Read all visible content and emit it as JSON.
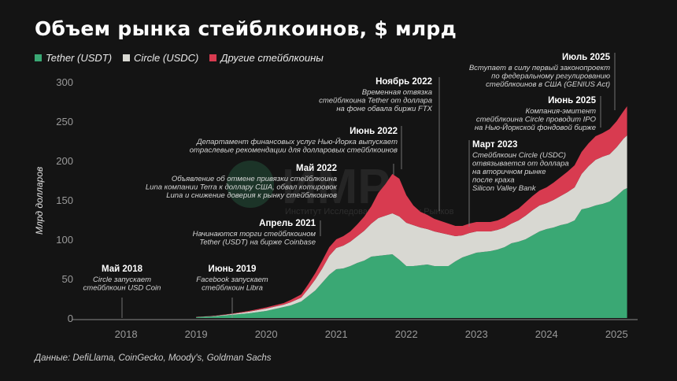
{
  "chart_data": {
    "type": "area",
    "stacked": true,
    "title": "Объем рынка стейблкоинов, $ млрд",
    "ylabel": "Млрд долларов",
    "xlabel": "",
    "ylim": [
      0,
      300
    ],
    "yticks": [
      0,
      50,
      100,
      150,
      200,
      250,
      300
    ],
    "xticks": [
      "2018",
      "2019",
      "2020",
      "2021",
      "2022",
      "2023",
      "2024",
      "2025"
    ],
    "grid": false,
    "legend_position": "top-left",
    "x": [
      2019.5,
      2019.75,
      2020.0,
      2020.25,
      2020.5,
      2020.75,
      2020.85,
      2021.0,
      2021.1,
      2021.2,
      2021.3,
      2021.4,
      2021.5,
      2021.6,
      2021.7,
      2021.8,
      2021.9,
      2022.0,
      2022.1,
      2022.2,
      2022.3,
      2022.4,
      2022.5,
      2022.6,
      2022.7,
      2022.8,
      2022.9,
      2023.0,
      2023.1,
      2023.2,
      2023.3,
      2023.4,
      2023.5,
      2023.6,
      2023.7,
      2023.8,
      2023.9,
      2024.0,
      2024.1,
      2024.2,
      2024.3,
      2024.4,
      2024.5,
      2024.6,
      2024.7,
      2024.8,
      2024.9,
      2025.0,
      2025.1,
      2025.2,
      2025.3,
      2025.4,
      2025.5,
      2025.6,
      2025.65
    ],
    "series": [
      {
        "name": "Tether (USDT)",
        "color": "#3aa874",
        "values": [
          1,
          2,
          4,
          6,
          9,
          14,
          16,
          21,
          28,
          35,
          45,
          55,
          62,
          63,
          66,
          70,
          73,
          78,
          79,
          80,
          81,
          74,
          66,
          66,
          67,
          68,
          66,
          66,
          66,
          72,
          77,
          80,
          83,
          84,
          85,
          87,
          90,
          95,
          97,
          100,
          105,
          110,
          113,
          115,
          118,
          120,
          124,
          138,
          140,
          143,
          145,
          148,
          155,
          163,
          165
        ]
      },
      {
        "name": "Circle (USDC)",
        "color": "#d8d8d2",
        "values": [
          0.3,
          0.5,
          1,
          2,
          3,
          3,
          4,
          5,
          9,
          14,
          18,
          24,
          27,
          29,
          31,
          34,
          38,
          42,
          48,
          50,
          52,
          55,
          55,
          52,
          48,
          45,
          44,
          42,
          40,
          32,
          28,
          28,
          27,
          26,
          25,
          25,
          25,
          25,
          27,
          30,
          32,
          33,
          33,
          35,
          37,
          40,
          42,
          45,
          53,
          58,
          60,
          60,
          62,
          65,
          67
        ]
      },
      {
        "name": "Другие стейблкоины",
        "color": "#d83b50",
        "values": [
          0.2,
          0.3,
          0.5,
          1,
          1.5,
          2,
          3,
          4,
          6,
          8,
          10,
          11,
          11,
          12,
          13,
          15,
          18,
          22,
          32,
          40,
          50,
          48,
          35,
          25,
          20,
          18,
          16,
          15,
          14,
          13,
          12,
          12,
          12,
          12,
          12,
          12,
          13,
          14,
          15,
          17,
          18,
          19,
          20,
          22,
          24,
          26,
          28,
          28,
          29,
          30,
          30,
          32,
          33,
          35,
          37
        ]
      }
    ],
    "annotations": [
      {
        "title": "Май 2018",
        "text": [
          "Circle запускает",
          "стейблкоин USD Coin"
        ]
      },
      {
        "title": "Июнь 2019",
        "text": [
          "Facebook запускает",
          "стейблкоин Libra"
        ]
      },
      {
        "title": "Апрель 2021",
        "text": [
          "Начинаются торги стейблкоином",
          "Tether (USDT) на бирже Coinbase"
        ]
      },
      {
        "title": "Май 2022",
        "text": [
          "Объявление об отмене привязки стейблкоина",
          "Luna компании Terra к доллару США, обвал котировок",
          "Luna и снижение доверия к рынку стейблкоинов"
        ]
      },
      {
        "title": "Июнь 2022",
        "text": [
          "Департамент финансовых услуг Нью-Йорка выпускает",
          "отраслевые рекомендации для долларовых стейблкоинов"
        ]
      },
      {
        "title": "Ноябрь 2022",
        "text": [
          "Временная отвязка",
          "стейблкоина Tether от доллара",
          "на фоне обвала биржи FTX"
        ]
      },
      {
        "title": "Март 2023",
        "text": [
          "Стейблкоин Circle (USDC)",
          "отвязывается от доллара",
          "на вторичном рынке",
          "после краха",
          "Silicon Valley Bank"
        ]
      },
      {
        "title": "Июнь 2025",
        "text": [
          "Компания-эмитент",
          "стейблкоина Circle проводит IPO",
          "на Нью-Йоркской фондовой бирже"
        ]
      },
      {
        "title": "Июль 2025",
        "text": [
          "Вступает в силу первый законопроект",
          "по федеральному регулированию",
          "стейблкоинов в США (GENIUS Act)"
        ]
      }
    ]
  },
  "legend": {
    "items": [
      {
        "label": "Tether (USDT)",
        "color": "#3aa874"
      },
      {
        "label": "Circle (USDC)",
        "color": "#d8d8d2"
      },
      {
        "label": "Другие стейблкоины",
        "color": "#d83b50"
      }
    ]
  },
  "watermark": {
    "main": "ИМР",
    "sub": "Институт Исследований Мировых Рынков"
  },
  "source": "Данные: DefiLlama, CoinGecko, Moody's, Goldman Sachs",
  "colors": {
    "background": "#141414",
    "axis": "#8a8a8a",
    "leader": "#8a8a8a"
  }
}
